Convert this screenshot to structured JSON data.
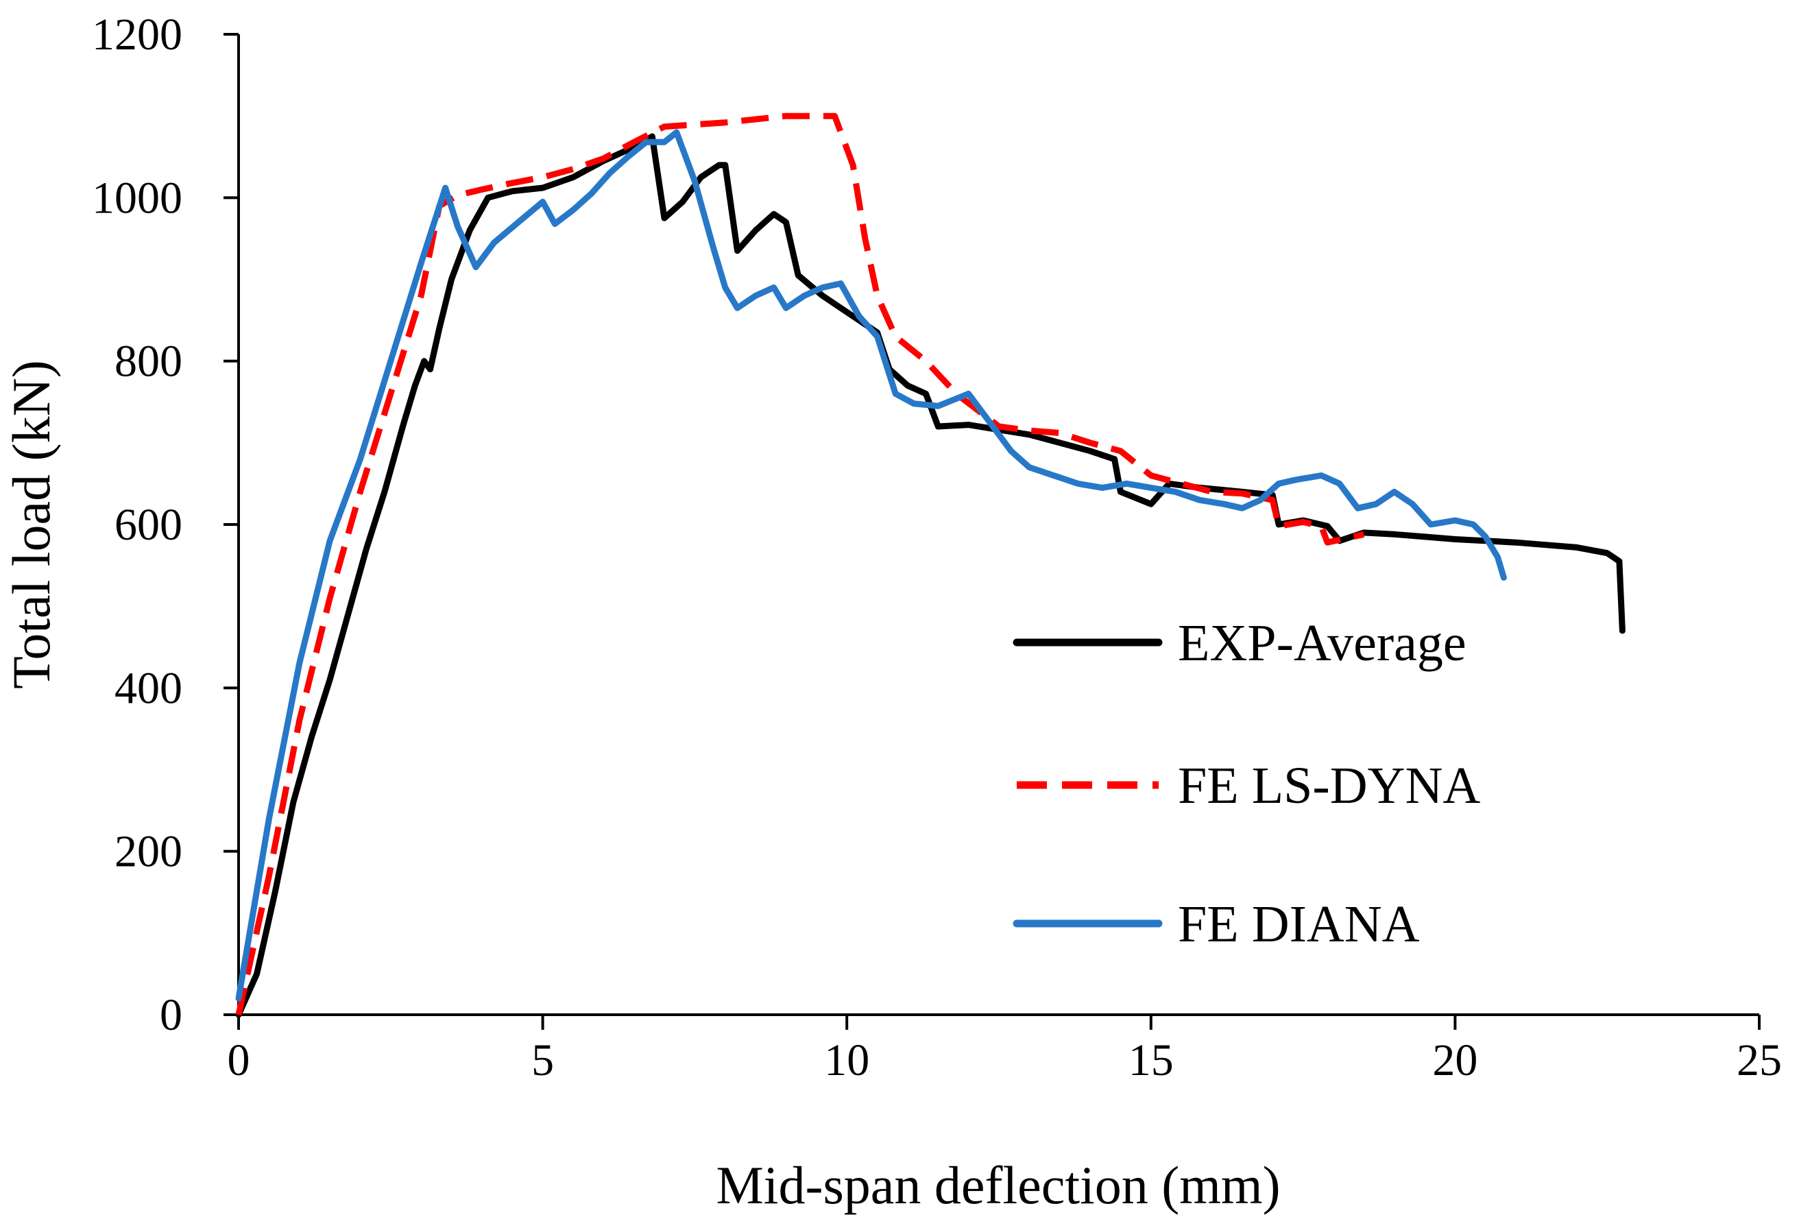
{
  "chart_data": {
    "type": "line",
    "xlabel": "Mid-span deflection (mm)",
    "ylabel": "Total load (kN)",
    "xlim": [
      0,
      25
    ],
    "ylim": [
      0,
      1200
    ],
    "xticks": [
      0,
      5,
      10,
      15,
      20,
      25
    ],
    "yticks": [
      0,
      200,
      400,
      600,
      800,
      1000,
      1200
    ],
    "grid": false,
    "legend_position": "right",
    "series": [
      {
        "name": "EXP-Average",
        "color": "#000000",
        "style": "solid",
        "points": [
          [
            0,
            0
          ],
          [
            0.3,
            50
          ],
          [
            0.6,
            150
          ],
          [
            0.9,
            260
          ],
          [
            1.2,
            340
          ],
          [
            1.5,
            410
          ],
          [
            1.8,
            490
          ],
          [
            2.1,
            570
          ],
          [
            2.4,
            640
          ],
          [
            2.7,
            720
          ],
          [
            2.9,
            770
          ],
          [
            3.05,
            800
          ],
          [
            3.15,
            790
          ],
          [
            3.3,
            840
          ],
          [
            3.5,
            900
          ],
          [
            3.8,
            960
          ],
          [
            4.1,
            1000
          ],
          [
            4.5,
            1008
          ],
          [
            5.0,
            1012
          ],
          [
            5.5,
            1025
          ],
          [
            6.0,
            1045
          ],
          [
            6.5,
            1062
          ],
          [
            6.8,
            1075
          ],
          [
            7.0,
            975
          ],
          [
            7.3,
            995
          ],
          [
            7.6,
            1025
          ],
          [
            7.9,
            1040
          ],
          [
            8.0,
            1040
          ],
          [
            8.2,
            935
          ],
          [
            8.5,
            960
          ],
          [
            8.8,
            980
          ],
          [
            9.0,
            970
          ],
          [
            9.2,
            905
          ],
          [
            9.6,
            880
          ],
          [
            10.0,
            860
          ],
          [
            10.5,
            835
          ],
          [
            10.7,
            790
          ],
          [
            11.0,
            770
          ],
          [
            11.3,
            760
          ],
          [
            11.5,
            720
          ],
          [
            12.0,
            722
          ],
          [
            12.5,
            716
          ],
          [
            13.0,
            710
          ],
          [
            13.5,
            700
          ],
          [
            14.0,
            690
          ],
          [
            14.4,
            680
          ],
          [
            14.5,
            640
          ],
          [
            15.0,
            625
          ],
          [
            15.3,
            650
          ],
          [
            15.8,
            645
          ],
          [
            16.5,
            640
          ],
          [
            17.0,
            636
          ],
          [
            17.1,
            600
          ],
          [
            17.5,
            605
          ],
          [
            17.9,
            598
          ],
          [
            18.1,
            580
          ],
          [
            18.5,
            590
          ],
          [
            19.0,
            588
          ],
          [
            19.5,
            585
          ],
          [
            20.0,
            582
          ],
          [
            20.5,
            580
          ],
          [
            21.0,
            578
          ],
          [
            21.5,
            575
          ],
          [
            22.0,
            572
          ],
          [
            22.5,
            565
          ],
          [
            22.7,
            555
          ],
          [
            22.75,
            470
          ]
        ]
      },
      {
        "name": "FE LS-DYNA",
        "color": "#ff0000",
        "style": "dashed",
        "points": [
          [
            0,
            0
          ],
          [
            0.5,
            170
          ],
          [
            1.0,
            360
          ],
          [
            1.5,
            510
          ],
          [
            2.0,
            640
          ],
          [
            2.5,
            760
          ],
          [
            3.0,
            880
          ],
          [
            3.3,
            990
          ],
          [
            3.6,
            1003
          ],
          [
            4.0,
            1010
          ],
          [
            4.5,
            1018
          ],
          [
            5.0,
            1025
          ],
          [
            5.5,
            1035
          ],
          [
            6.0,
            1048
          ],
          [
            6.5,
            1068
          ],
          [
            7.0,
            1087
          ],
          [
            8.0,
            1092
          ],
          [
            9.0,
            1100
          ],
          [
            9.8,
            1100
          ],
          [
            10.1,
            1040
          ],
          [
            10.3,
            950
          ],
          [
            10.5,
            880
          ],
          [
            10.8,
            830
          ],
          [
            11.3,
            800
          ],
          [
            11.8,
            760
          ],
          [
            12.5,
            720
          ],
          [
            13.0,
            715
          ],
          [
            13.5,
            712
          ],
          [
            14.0,
            700
          ],
          [
            14.5,
            690
          ],
          [
            15.0,
            660
          ],
          [
            15.5,
            650
          ],
          [
            16.0,
            640
          ],
          [
            16.5,
            638
          ],
          [
            17.0,
            630
          ],
          [
            17.1,
            598
          ],
          [
            17.5,
            603
          ],
          [
            17.8,
            598
          ],
          [
            17.9,
            578
          ],
          [
            18.5,
            588
          ]
        ]
      },
      {
        "name": "FE DIANA",
        "color": "#2878c8",
        "style": "solid",
        "points": [
          [
            0,
            20
          ],
          [
            0.5,
            240
          ],
          [
            1.0,
            430
          ],
          [
            1.5,
            580
          ],
          [
            2.0,
            680
          ],
          [
            2.5,
            800
          ],
          [
            3.0,
            920
          ],
          [
            3.4,
            1012
          ],
          [
            3.6,
            965
          ],
          [
            3.9,
            915
          ],
          [
            4.2,
            945
          ],
          [
            4.6,
            970
          ],
          [
            5.0,
            995
          ],
          [
            5.2,
            968
          ],
          [
            5.5,
            985
          ],
          [
            5.8,
            1005
          ],
          [
            6.1,
            1030
          ],
          [
            6.4,
            1050
          ],
          [
            6.7,
            1068
          ],
          [
            7.0,
            1068
          ],
          [
            7.2,
            1080
          ],
          [
            7.5,
            1020
          ],
          [
            7.8,
            940
          ],
          [
            8.0,
            890
          ],
          [
            8.2,
            865
          ],
          [
            8.5,
            880
          ],
          [
            8.8,
            890
          ],
          [
            9.0,
            865
          ],
          [
            9.3,
            880
          ],
          [
            9.6,
            890
          ],
          [
            9.9,
            895
          ],
          [
            10.2,
            855
          ],
          [
            10.5,
            830
          ],
          [
            10.8,
            760
          ],
          [
            11.1,
            748
          ],
          [
            11.5,
            745
          ],
          [
            12.0,
            760
          ],
          [
            12.3,
            730
          ],
          [
            12.7,
            690
          ],
          [
            13.0,
            670
          ],
          [
            13.4,
            660
          ],
          [
            13.8,
            650
          ],
          [
            14.2,
            645
          ],
          [
            14.6,
            650
          ],
          [
            15.0,
            645
          ],
          [
            15.4,
            640
          ],
          [
            15.8,
            630
          ],
          [
            16.2,
            625
          ],
          [
            16.5,
            620
          ],
          [
            16.8,
            630
          ],
          [
            17.1,
            650
          ],
          [
            17.4,
            655
          ],
          [
            17.8,
            660
          ],
          [
            18.1,
            650
          ],
          [
            18.4,
            620
          ],
          [
            18.7,
            625
          ],
          [
            19.0,
            640
          ],
          [
            19.3,
            625
          ],
          [
            19.6,
            600
          ],
          [
            20.0,
            605
          ],
          [
            20.3,
            600
          ],
          [
            20.5,
            585
          ],
          [
            20.7,
            560
          ],
          [
            20.8,
            535
          ]
        ]
      }
    ]
  }
}
